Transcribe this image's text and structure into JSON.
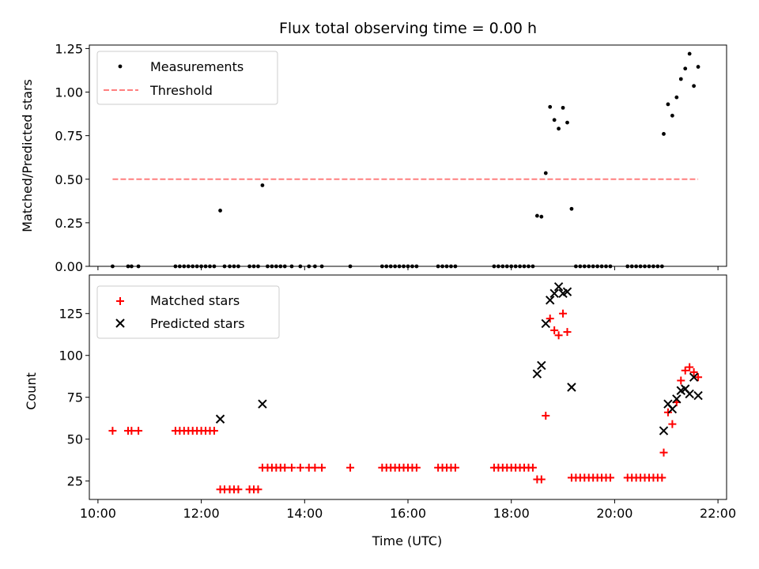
{
  "chart_data": [
    {
      "type": "scatter",
      "title": "Flux total observing time = 0.00 h",
      "xlabel": "",
      "ylabel": "Matched/Predicted stars",
      "xlim": [
        "09:50",
        "22:10"
      ],
      "ylim": [
        0.0,
        1.27
      ],
      "x_ticks": [
        "10:00",
        "12:00",
        "14:00",
        "16:00",
        "18:00",
        "20:00",
        "22:00"
      ],
      "y_ticks": [
        "0.00",
        "0.25",
        "0.50",
        "0.75",
        "1.00",
        "1.25"
      ],
      "legend_position": "top-left",
      "series": [
        {
          "name": "Measurements",
          "kind": "points",
          "color": "#000000",
          "points": [
            [
              "10:17",
              0
            ],
            [
              "10:35",
              0
            ],
            [
              "10:39",
              0
            ],
            [
              "10:47",
              0
            ],
            [
              "11:30",
              0
            ],
            [
              "11:35",
              0
            ],
            [
              "11:40",
              0
            ],
            [
              "11:45",
              0
            ],
            [
              "11:50",
              0
            ],
            [
              "11:55",
              0
            ],
            [
              "12:00",
              0
            ],
            [
              "12:05",
              0
            ],
            [
              "12:10",
              0
            ],
            [
              "12:15",
              0
            ],
            [
              "12:22",
              0.32
            ],
            [
              "12:27",
              0
            ],
            [
              "12:33",
              0
            ],
            [
              "12:38",
              0
            ],
            [
              "12:43",
              0
            ],
            [
              "12:56",
              0
            ],
            [
              "13:01",
              0
            ],
            [
              "13:06",
              0
            ],
            [
              "13:11",
              0.465
            ],
            [
              "13:17",
              0
            ],
            [
              "13:22",
              0
            ],
            [
              "13:27",
              0
            ],
            [
              "13:32",
              0
            ],
            [
              "13:37",
              0
            ],
            [
              "13:45",
              0
            ],
            [
              "13:55",
              0
            ],
            [
              "14:05",
              0
            ],
            [
              "14:12",
              0
            ],
            [
              "14:20",
              0
            ],
            [
              "14:53",
              0
            ],
            [
              "15:30",
              0
            ],
            [
              "15:35",
              0
            ],
            [
              "15:40",
              0
            ],
            [
              "15:45",
              0
            ],
            [
              "15:50",
              0
            ],
            [
              "15:55",
              0
            ],
            [
              "16:00",
              0
            ],
            [
              "16:05",
              0
            ],
            [
              "16:10",
              0
            ],
            [
              "16:35",
              0
            ],
            [
              "16:40",
              0
            ],
            [
              "16:45",
              0
            ],
            [
              "16:50",
              0
            ],
            [
              "16:55",
              0
            ],
            [
              "17:40",
              0
            ],
            [
              "17:45",
              0
            ],
            [
              "17:50",
              0
            ],
            [
              "17:55",
              0
            ],
            [
              "18:00",
              0
            ],
            [
              "18:05",
              0
            ],
            [
              "18:10",
              0
            ],
            [
              "18:15",
              0
            ],
            [
              "18:20",
              0
            ],
            [
              "18:25",
              0
            ],
            [
              "18:30",
              0.29
            ],
            [
              "18:35",
              0.285
            ],
            [
              "18:40",
              0.535
            ],
            [
              "18:45",
              0.915
            ],
            [
              "18:50",
              0.84
            ],
            [
              "18:55",
              0.79
            ],
            [
              "19:00",
              0.91
            ],
            [
              "19:05",
              0.825
            ],
            [
              "19:10",
              0.33
            ],
            [
              "19:15",
              0
            ],
            [
              "19:20",
              0
            ],
            [
              "19:25",
              0
            ],
            [
              "19:30",
              0
            ],
            [
              "19:35",
              0
            ],
            [
              "19:40",
              0
            ],
            [
              "19:45",
              0
            ],
            [
              "19:50",
              0
            ],
            [
              "19:55",
              0
            ],
            [
              "20:15",
              0
            ],
            [
              "20:20",
              0
            ],
            [
              "20:25",
              0
            ],
            [
              "20:30",
              0
            ],
            [
              "20:35",
              0
            ],
            [
              "20:40",
              0
            ],
            [
              "20:45",
              0
            ],
            [
              "20:50",
              0
            ],
            [
              "20:55",
              0
            ],
            [
              "20:57",
              0.76
            ],
            [
              "21:02",
              0.93
            ],
            [
              "21:07",
              0.865
            ],
            [
              "21:12",
              0.97
            ],
            [
              "21:17",
              1.075
            ],
            [
              "21:22",
              1.135
            ],
            [
              "21:27",
              1.22
            ],
            [
              "21:32",
              1.035
            ],
            [
              "21:37",
              1.145
            ]
          ]
        },
        {
          "name": "Threshold",
          "kind": "dashed-line",
          "color": "#ff7f7f",
          "points": [
            [
              "10:17",
              0.5
            ],
            [
              "21:37",
              0.5
            ]
          ]
        }
      ]
    },
    {
      "type": "scatter",
      "title": "",
      "xlabel": "Time (UTC)",
      "ylabel": "Count",
      "xlim": [
        "09:50",
        "22:10"
      ],
      "ylim": [
        14,
        148
      ],
      "x_ticks": [
        "10:00",
        "12:00",
        "14:00",
        "16:00",
        "18:00",
        "20:00",
        "22:00"
      ],
      "y_ticks": [
        "25",
        "50",
        "75",
        "100",
        "125"
      ],
      "legend_position": "top-left",
      "series": [
        {
          "name": "Matched stars",
          "kind": "plus",
          "color": "#ff0000",
          "points": [
            [
              "10:17",
              55
            ],
            [
              "10:35",
              55
            ],
            [
              "10:39",
              55
            ],
            [
              "10:47",
              55
            ],
            [
              "11:30",
              55
            ],
            [
              "11:35",
              55
            ],
            [
              "11:40",
              55
            ],
            [
              "11:45",
              55
            ],
            [
              "11:50",
              55
            ],
            [
              "11:55",
              55
            ],
            [
              "12:00",
              55
            ],
            [
              "12:05",
              55
            ],
            [
              "12:10",
              55
            ],
            [
              "12:15",
              55
            ],
            [
              "12:22",
              20
            ],
            [
              "12:27",
              20
            ],
            [
              "12:33",
              20
            ],
            [
              "12:38",
              20
            ],
            [
              "12:43",
              20
            ],
            [
              "12:56",
              20
            ],
            [
              "13:01",
              20
            ],
            [
              "13:06",
              20
            ],
            [
              "13:11",
              33
            ],
            [
              "13:17",
              33
            ],
            [
              "13:22",
              33
            ],
            [
              "13:27",
              33
            ],
            [
              "13:32",
              33
            ],
            [
              "13:37",
              33
            ],
            [
              "13:45",
              33
            ],
            [
              "13:55",
              33
            ],
            [
              "14:05",
              33
            ],
            [
              "14:12",
              33
            ],
            [
              "14:20",
              33
            ],
            [
              "14:53",
              33
            ],
            [
              "15:30",
              33
            ],
            [
              "15:35",
              33
            ],
            [
              "15:40",
              33
            ],
            [
              "15:45",
              33
            ],
            [
              "15:50",
              33
            ],
            [
              "15:55",
              33
            ],
            [
              "16:00",
              33
            ],
            [
              "16:05",
              33
            ],
            [
              "16:10",
              33
            ],
            [
              "16:35",
              33
            ],
            [
              "16:40",
              33
            ],
            [
              "16:45",
              33
            ],
            [
              "16:50",
              33
            ],
            [
              "16:55",
              33
            ],
            [
              "17:40",
              33
            ],
            [
              "17:45",
              33
            ],
            [
              "17:50",
              33
            ],
            [
              "17:55",
              33
            ],
            [
              "18:00",
              33
            ],
            [
              "18:05",
              33
            ],
            [
              "18:10",
              33
            ],
            [
              "18:15",
              33
            ],
            [
              "18:20",
              33
            ],
            [
              "18:25",
              33
            ],
            [
              "18:30",
              26
            ],
            [
              "18:35",
              26
            ],
            [
              "18:40",
              64
            ],
            [
              "18:45",
              122
            ],
            [
              "18:50",
              115
            ],
            [
              "18:55",
              112
            ],
            [
              "19:00",
              125
            ],
            [
              "19:05",
              114
            ],
            [
              "19:10",
              27
            ],
            [
              "19:15",
              27
            ],
            [
              "19:20",
              27
            ],
            [
              "19:25",
              27
            ],
            [
              "19:30",
              27
            ],
            [
              "19:35",
              27
            ],
            [
              "19:40",
              27
            ],
            [
              "19:45",
              27
            ],
            [
              "19:50",
              27
            ],
            [
              "19:55",
              27
            ],
            [
              "20:15",
              27
            ],
            [
              "20:20",
              27
            ],
            [
              "20:25",
              27
            ],
            [
              "20:30",
              27
            ],
            [
              "20:35",
              27
            ],
            [
              "20:40",
              27
            ],
            [
              "20:45",
              27
            ],
            [
              "20:50",
              27
            ],
            [
              "20:55",
              27
            ],
            [
              "20:57",
              42
            ],
            [
              "21:02",
              66
            ],
            [
              "21:07",
              59
            ],
            [
              "21:12",
              72
            ],
            [
              "21:17",
              85
            ],
            [
              "21:22",
              91
            ],
            [
              "21:27",
              93
            ],
            [
              "21:32",
              90
            ],
            [
              "21:37",
              87
            ]
          ]
        },
        {
          "name": "Predicted stars",
          "kind": "x",
          "color": "#000000",
          "points": [
            [
              "12:22",
              62
            ],
            [
              "13:11",
              71
            ],
            [
              "18:30",
              89
            ],
            [
              "18:35",
              94
            ],
            [
              "18:40",
              119
            ],
            [
              "18:45",
              133
            ],
            [
              "18:50",
              137
            ],
            [
              "18:55",
              141
            ],
            [
              "19:00",
              137
            ],
            [
              "19:05",
              138
            ],
            [
              "19:10",
              81
            ],
            [
              "20:57",
              55
            ],
            [
              "21:02",
              71
            ],
            [
              "21:07",
              68
            ],
            [
              "21:12",
              74
            ],
            [
              "21:17",
              79
            ],
            [
              "21:22",
              80
            ],
            [
              "21:27",
              77
            ],
            [
              "21:32",
              87
            ],
            [
              "21:37",
              76
            ]
          ]
        }
      ]
    }
  ]
}
